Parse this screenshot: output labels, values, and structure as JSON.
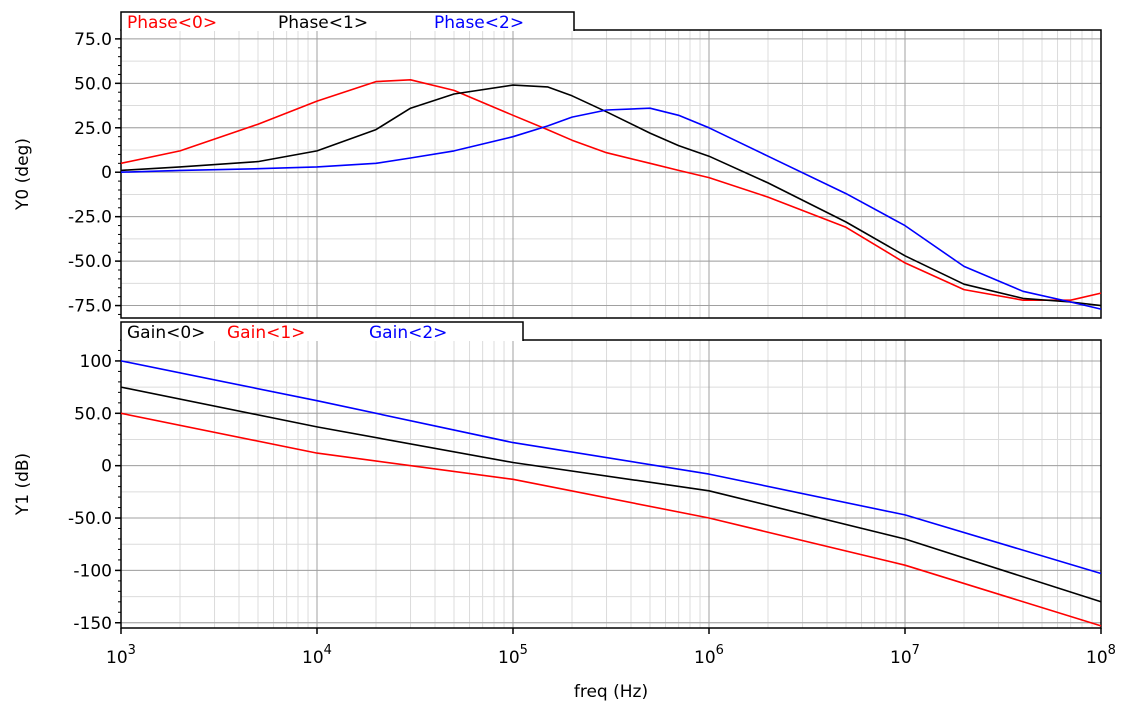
{
  "chart_data": [
    {
      "type": "line",
      "ylabel": "Y0 (deg)",
      "xlabel": "",
      "x_scale": "log",
      "xlim": [
        1000,
        100000000
      ],
      "ylim": [
        -82,
        80
      ],
      "grid": true,
      "legend_position": "top-left",
      "yticks": [
        {
          "value": 75,
          "label": "75.0"
        },
        {
          "value": 50,
          "label": "50.0"
        },
        {
          "value": 25,
          "label": "25.0"
        },
        {
          "value": 0,
          "label": "0"
        },
        {
          "value": -25,
          "label": "-25.0"
        },
        {
          "value": -50,
          "label": "-50.0"
        },
        {
          "value": -75,
          "label": "-75.0"
        }
      ],
      "x": [
        1000,
        2000,
        5000,
        10000,
        20000,
        30000,
        50000,
        100000,
        150000,
        200000,
        300000,
        500000,
        700000,
        1000000,
        2000000,
        5000000,
        10000000,
        20000000,
        40000000,
        70000000,
        100000000
      ],
      "series": [
        {
          "name": "Phase<0>",
          "color": "#ff0000",
          "values": [
            5,
            12,
            27,
            40,
            51,
            52,
            46,
            32,
            24,
            18,
            11,
            5,
            1,
            -3,
            -14,
            -31,
            -51,
            -66,
            -72,
            -72,
            -68
          ]
        },
        {
          "name": "Phase<1>",
          "color": "#000000",
          "values": [
            1,
            3,
            6,
            12,
            24,
            36,
            44,
            49,
            48,
            43,
            34,
            22,
            15,
            9,
            -6,
            -28,
            -47,
            -63,
            -71,
            -73,
            -75
          ]
        },
        {
          "name": "Phase<2>",
          "color": "#0000ff",
          "values": [
            0,
            1,
            2,
            3,
            5,
            8,
            12,
            20,
            26,
            31,
            35,
            36,
            32,
            25,
            9,
            -12,
            -30,
            -53,
            -67,
            -73,
            -77
          ]
        }
      ]
    },
    {
      "type": "line",
      "ylabel": "Y1 (dB)",
      "xlabel": "freq (Hz)",
      "x_scale": "log",
      "xlim": [
        1000,
        100000000
      ],
      "ylim": [
        -155,
        120
      ],
      "grid": true,
      "legend_position": "top-left",
      "yticks": [
        {
          "value": 100,
          "label": "100"
        },
        {
          "value": 50,
          "label": "50.0"
        },
        {
          "value": 0,
          "label": "0"
        },
        {
          "value": -50,
          "label": "-50.0"
        },
        {
          "value": -100,
          "label": "-100"
        },
        {
          "value": -150,
          "label": "-150"
        }
      ],
      "xticks": [
        {
          "value": 1000,
          "base": "10",
          "exp": "3"
        },
        {
          "value": 10000,
          "base": "10",
          "exp": "4"
        },
        {
          "value": 100000,
          "base": "10",
          "exp": "5"
        },
        {
          "value": 1000000,
          "base": "10",
          "exp": "6"
        },
        {
          "value": 10000000,
          "base": "10",
          "exp": "7"
        },
        {
          "value": 100000000,
          "base": "10",
          "exp": "8"
        }
      ],
      "x": [
        1000,
        10000,
        100000,
        1000000,
        10000000,
        100000000
      ],
      "series": [
        {
          "name": "Gain<0>",
          "color": "#000000",
          "values": [
            75,
            37,
            3,
            -24,
            -70,
            -130
          ]
        },
        {
          "name": "Gain<1>",
          "color": "#ff0000",
          "values": [
            50,
            12,
            -13,
            -50,
            -95,
            -153
          ]
        },
        {
          "name": "Gain<2>",
          "color": "#0000ff",
          "values": [
            100,
            62,
            22,
            -8,
            -47,
            -103
          ]
        }
      ]
    }
  ]
}
